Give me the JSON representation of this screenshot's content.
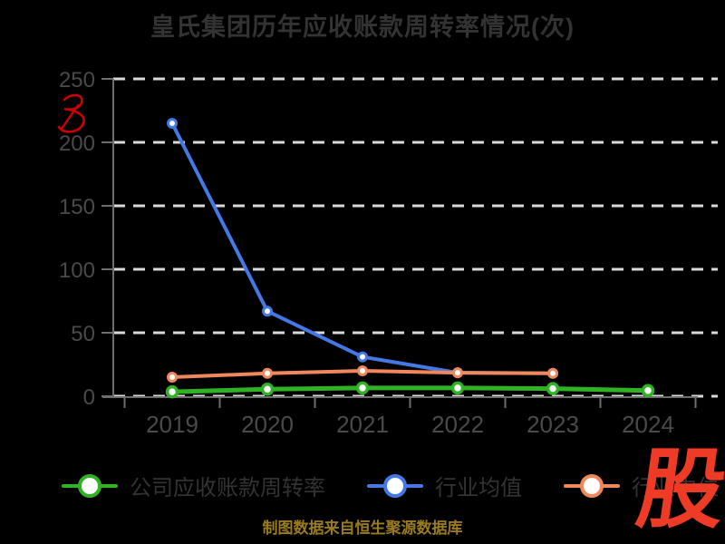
{
  "page": {
    "background": "#000000"
  },
  "title": {
    "text": "皇氏集团历年应收账款周转率情况(次)"
  },
  "caption": {
    "text": "制图数据来自恒生聚源数据库"
  },
  "watermark": {
    "logo_char": "股",
    "logo_color": "#ee3b26",
    "signature_color": "#cc0000"
  },
  "chart_data": {
    "type": "line",
    "title": "皇氏集团历年应收账款周转率情况(次)",
    "categories": [
      "2019",
      "2020",
      "2021",
      "2022",
      "2023",
      "2024"
    ],
    "series": [
      {
        "name": "公司应收账款周转率",
        "color": "#2fb224",
        "values": [
          3.5,
          5.5,
          6.5,
          6.5,
          6,
          4.5
        ]
      },
      {
        "name": "行业均值",
        "color": "#4478e4",
        "values": [
          215,
          67,
          31,
          18.5,
          18,
          null
        ]
      },
      {
        "name": "行业中位",
        "color": "#f0885c",
        "values": [
          15,
          18,
          20,
          18.5,
          18,
          null
        ]
      }
    ],
    "xlabel": "",
    "ylabel": "",
    "ylim": [
      0,
      250
    ],
    "yticks": [
      0,
      50,
      100,
      150,
      200,
      250
    ],
    "grid": "dashed-horizontal",
    "grid_color": "#d9d9d9",
    "axis_color": "#6e6e6e",
    "tick_label_color": "#4a4a4a",
    "legend_position": "bottom",
    "marker": "open-circle"
  }
}
